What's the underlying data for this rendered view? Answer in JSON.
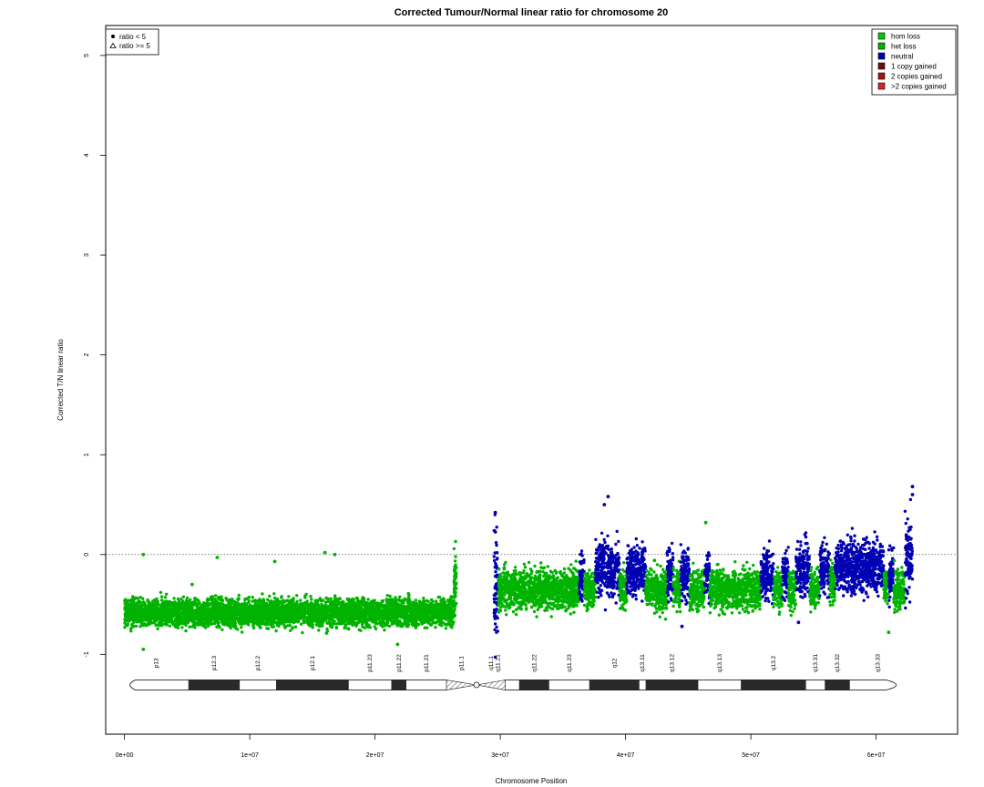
{
  "chart_data": {
    "type": "scatter",
    "title": "Corrected Tumour/Normal linear ratio for chromosome  20",
    "xlabel": "Chromosome Position",
    "ylabel": "Corrected T/N linear ratio",
    "xlim": [
      -1500000,
      66500000
    ],
    "ylim": [
      -1.8,
      5.3
    ],
    "x_ticks": [
      0,
      10000000,
      20000000,
      30000000,
      40000000,
      50000000,
      60000000
    ],
    "x_tick_labels": [
      "0e+00",
      "1e+07",
      "2e+07",
      "3e+07",
      "4e+07",
      "5e+07",
      "6e+07"
    ],
    "y_ticks": [
      -1,
      0,
      1,
      2,
      3,
      4,
      5
    ],
    "y_tick_labels": [
      "-1",
      "0",
      "1",
      "2",
      "3",
      "4",
      "5"
    ],
    "reference_line": {
      "y": 0,
      "style": "dotted"
    },
    "grid": false,
    "colors": {
      "hom_loss": "#00cc00",
      "het_loss": "#00b300",
      "neutral": "#0000b3",
      "one_copy_gained": "#661111",
      "two_copies_gained": "#aa1111",
      "more_copies_gained": "#dd2222"
    },
    "legend_states": {
      "position": "top-right",
      "items": [
        {
          "label": "hom loss",
          "color": "#00cc00"
        },
        {
          "label": "het loss",
          "color": "#00b300"
        },
        {
          "label": "neutral",
          "color": "#0000b3"
        },
        {
          "label": "1 copy gained",
          "color": "#661111"
        },
        {
          "label": "2 copies gained",
          "color": "#aa1111"
        },
        {
          "label": ">2 copies gained",
          "color": "#dd2222"
        }
      ]
    },
    "legend_shapes": {
      "position": "top-left",
      "items": [
        {
          "label": "ratio < 5",
          "shape": "circle"
        },
        {
          "label": "ratio >= 5",
          "shape": "triangle"
        }
      ]
    },
    "segments": [
      {
        "start": 0,
        "end": 26300000,
        "state": "het_loss",
        "mean": -0.58,
        "sd": 0.07
      },
      {
        "start": 26300000,
        "end": 26500000,
        "state": "het_loss",
        "mean": -0.3,
        "sd": 0.2
      },
      {
        "start": 29500000,
        "end": 29800000,
        "state": "neutral",
        "mean": -0.3,
        "sd": 0.3
      },
      {
        "start": 29800000,
        "end": 36300000,
        "state": "het_loss",
        "mean": -0.35,
        "sd": 0.1
      },
      {
        "start": 36300000,
        "end": 36700000,
        "state": "neutral",
        "mean": -0.2,
        "sd": 0.12
      },
      {
        "start": 36700000,
        "end": 37600000,
        "state": "het_loss",
        "mean": -0.35,
        "sd": 0.1
      },
      {
        "start": 37600000,
        "end": 39500000,
        "state": "neutral",
        "mean": -0.15,
        "sd": 0.13
      },
      {
        "start": 39500000,
        "end": 40100000,
        "state": "het_loss",
        "mean": -0.35,
        "sd": 0.1
      },
      {
        "start": 40100000,
        "end": 41600000,
        "state": "neutral",
        "mean": -0.15,
        "sd": 0.13
      },
      {
        "start": 41600000,
        "end": 43300000,
        "state": "het_loss",
        "mean": -0.35,
        "sd": 0.1
      },
      {
        "start": 43300000,
        "end": 43800000,
        "state": "neutral",
        "mean": -0.2,
        "sd": 0.12
      },
      {
        "start": 43800000,
        "end": 44400000,
        "state": "het_loss",
        "mean": -0.35,
        "sd": 0.1
      },
      {
        "start": 44400000,
        "end": 45100000,
        "state": "neutral",
        "mean": -0.2,
        "sd": 0.12
      },
      {
        "start": 45100000,
        "end": 46300000,
        "state": "het_loss",
        "mean": -0.35,
        "sd": 0.1
      },
      {
        "start": 46300000,
        "end": 46700000,
        "state": "neutral",
        "mean": -0.2,
        "sd": 0.12
      },
      {
        "start": 46700000,
        "end": 50800000,
        "state": "het_loss",
        "mean": -0.35,
        "sd": 0.1
      },
      {
        "start": 50800000,
        "end": 51800000,
        "state": "neutral",
        "mean": -0.2,
        "sd": 0.12
      },
      {
        "start": 51800000,
        "end": 52500000,
        "state": "het_loss",
        "mean": -0.35,
        "sd": 0.1
      },
      {
        "start": 52500000,
        "end": 53000000,
        "state": "neutral",
        "mean": -0.2,
        "sd": 0.12
      },
      {
        "start": 53000000,
        "end": 53600000,
        "state": "het_loss",
        "mean": -0.35,
        "sd": 0.1
      },
      {
        "start": 53600000,
        "end": 54700000,
        "state": "neutral",
        "mean": -0.15,
        "sd": 0.13
      },
      {
        "start": 54700000,
        "end": 55500000,
        "state": "het_loss",
        "mean": -0.35,
        "sd": 0.1
      },
      {
        "start": 55500000,
        "end": 56300000,
        "state": "neutral",
        "mean": -0.15,
        "sd": 0.13
      },
      {
        "start": 56300000,
        "end": 56700000,
        "state": "het_loss",
        "mean": -0.3,
        "sd": 0.1
      },
      {
        "start": 56700000,
        "end": 60600000,
        "state": "neutral",
        "mean": -0.12,
        "sd": 0.13
      },
      {
        "start": 60600000,
        "end": 61000000,
        "state": "het_loss",
        "mean": -0.3,
        "sd": 0.1
      },
      {
        "start": 61000000,
        "end": 61400000,
        "state": "neutral",
        "mean": -0.2,
        "sd": 0.12
      },
      {
        "start": 61400000,
        "end": 62300000,
        "state": "het_loss",
        "mean": -0.35,
        "sd": 0.1
      },
      {
        "start": 62300000,
        "end": 62900000,
        "state": "neutral",
        "mean": -0.05,
        "sd": 0.2
      }
    ],
    "outliers": [
      {
        "x": 1500000,
        "y": 0.0,
        "state": "het_loss"
      },
      {
        "x": 1500000,
        "y": -0.95,
        "state": "het_loss"
      },
      {
        "x": 5400000,
        "y": -0.3,
        "state": "het_loss"
      },
      {
        "x": 7400000,
        "y": -0.03,
        "state": "het_loss"
      },
      {
        "x": 12000000,
        "y": -0.07,
        "state": "het_loss"
      },
      {
        "x": 16000000,
        "y": 0.02,
        "state": "het_loss"
      },
      {
        "x": 16800000,
        "y": 0.0,
        "state": "het_loss"
      },
      {
        "x": 21800000,
        "y": -0.9,
        "state": "het_loss"
      },
      {
        "x": 29600000,
        "y": 0.42,
        "state": "neutral"
      },
      {
        "x": 38300000,
        "y": 0.5,
        "state": "neutral"
      },
      {
        "x": 38600000,
        "y": 0.58,
        "state": "neutral"
      },
      {
        "x": 42300000,
        "y": -0.06,
        "state": "het_loss"
      },
      {
        "x": 44500000,
        "y": -0.72,
        "state": "neutral"
      },
      {
        "x": 46400000,
        "y": 0.32,
        "state": "het_loss"
      },
      {
        "x": 53800000,
        "y": -0.68,
        "state": "neutral"
      },
      {
        "x": 61000000,
        "y": -0.78,
        "state": "het_loss"
      },
      {
        "x": 62900000,
        "y": 0.68,
        "state": "neutral"
      },
      {
        "x": 62900000,
        "y": 0.6,
        "state": "neutral"
      }
    ],
    "ideogram": {
      "bands": [
        {
          "name": "p13",
          "start": 0,
          "end": 5100000,
          "stain": "gneg"
        },
        {
          "name": "p12.3",
          "start": 5100000,
          "end": 9200000,
          "stain": "gpos"
        },
        {
          "name": "p12.2",
          "start": 9200000,
          "end": 12100000,
          "stain": "gneg"
        },
        {
          "name": "p12.1",
          "start": 12100000,
          "end": 17900000,
          "stain": "gpos"
        },
        {
          "name": "p11.23",
          "start": 17900000,
          "end": 21300000,
          "stain": "gneg"
        },
        {
          "name": "p11.22",
          "start": 21300000,
          "end": 22500000,
          "stain": "gpos"
        },
        {
          "name": "p11.21",
          "start": 22500000,
          "end": 25700000,
          "stain": "gneg"
        },
        {
          "name": "p11.1",
          "start": 25700000,
          "end": 28100000,
          "stain": "acen"
        },
        {
          "name": "q11.1",
          "start": 28100000,
          "end": 30400000,
          "stain": "acen"
        },
        {
          "name": "q11.21",
          "start": 28100000,
          "end": 31500000,
          "stain": "gneg"
        },
        {
          "name": "q11.22",
          "start": 31500000,
          "end": 33900000,
          "stain": "gpos"
        },
        {
          "name": "q11.23",
          "start": 33900000,
          "end": 37100000,
          "stain": "gneg"
        },
        {
          "name": "q12",
          "start": 37100000,
          "end": 41100000,
          "stain": "gpos"
        },
        {
          "name": "q13.11",
          "start": 41100000,
          "end": 41600000,
          "stain": "gneg"
        },
        {
          "name": "q13.12",
          "start": 41600000,
          "end": 45800000,
          "stain": "gpos"
        },
        {
          "name": "q13.13",
          "start": 45800000,
          "end": 49200000,
          "stain": "gneg"
        },
        {
          "name": "q13.2",
          "start": 49200000,
          "end": 54400000,
          "stain": "gpos"
        },
        {
          "name": "q13.31",
          "start": 54400000,
          "end": 55900000,
          "stain": "gneg"
        },
        {
          "name": "q13.32",
          "start": 55900000,
          "end": 57900000,
          "stain": "gpos"
        },
        {
          "name": "q13.33",
          "start": 57900000,
          "end": 62400000,
          "stain": "gneg"
        }
      ]
    }
  }
}
